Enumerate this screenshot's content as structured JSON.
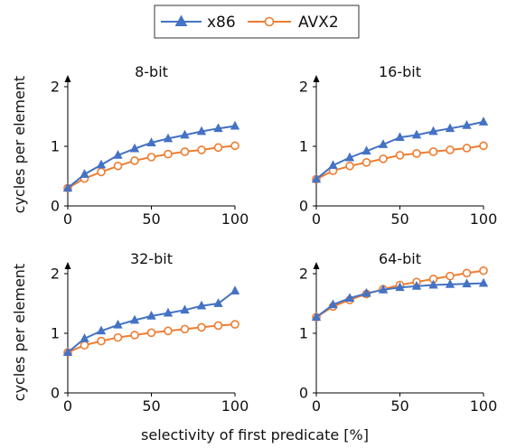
{
  "legend": [
    {
      "name": "x86",
      "color": "#4472C4",
      "marker": "triangle"
    },
    {
      "name": "AVX2",
      "color": "#ED7D31",
      "marker": "circle"
    }
  ],
  "ylabel": "cycles per element",
  "xlabel": "selectivity of first predicate [%]",
  "chart_data": [
    {
      "type": "line",
      "title": "8-bit",
      "x": [
        0,
        10,
        20,
        30,
        40,
        50,
        60,
        70,
        80,
        90,
        100
      ],
      "xlim": [
        0,
        100
      ],
      "ylim": [
        0,
        2
      ],
      "xticks": [
        "0",
        "50",
        "100"
      ],
      "yticks": [
        "0",
        "1",
        "2"
      ],
      "series": [
        {
          "name": "x86",
          "values": [
            0.3,
            0.53,
            0.69,
            0.85,
            0.96,
            1.06,
            1.13,
            1.19,
            1.25,
            1.3,
            1.34
          ]
        },
        {
          "name": "AVX2",
          "values": [
            0.3,
            0.46,
            0.57,
            0.67,
            0.76,
            0.82,
            0.87,
            0.91,
            0.94,
            0.98,
            1.01
          ]
        }
      ]
    },
    {
      "type": "line",
      "title": "16-bit",
      "x": [
        0,
        10,
        20,
        30,
        40,
        50,
        60,
        70,
        80,
        90,
        100
      ],
      "xlim": [
        0,
        100
      ],
      "ylim": [
        0,
        2
      ],
      "xticks": [
        "0",
        "50",
        "100"
      ],
      "yticks": [
        "0",
        "1",
        "2"
      ],
      "series": [
        {
          "name": "x86",
          "values": [
            0.45,
            0.68,
            0.81,
            0.92,
            1.03,
            1.15,
            1.19,
            1.25,
            1.3,
            1.35,
            1.41
          ]
        },
        {
          "name": "AVX2",
          "values": [
            0.45,
            0.59,
            0.67,
            0.73,
            0.79,
            0.85,
            0.88,
            0.91,
            0.94,
            0.97,
            1.01
          ]
        }
      ]
    },
    {
      "type": "line",
      "title": "32-bit",
      "x": [
        0,
        10,
        20,
        30,
        40,
        50,
        60,
        70,
        80,
        90,
        100
      ],
      "xlim": [
        0,
        100
      ],
      "ylim": [
        0,
        2
      ],
      "xticks": [
        "0",
        "50",
        "100"
      ],
      "yticks": [
        "0",
        "1",
        "2"
      ],
      "series": [
        {
          "name": "x86",
          "values": [
            0.68,
            0.91,
            1.04,
            1.14,
            1.22,
            1.29,
            1.34,
            1.39,
            1.46,
            1.5,
            1.71
          ]
        },
        {
          "name": "AVX2",
          "values": [
            0.68,
            0.8,
            0.87,
            0.93,
            0.97,
            1.01,
            1.04,
            1.07,
            1.1,
            1.13,
            1.15
          ]
        }
      ]
    },
    {
      "type": "line",
      "title": "64-bit",
      "x": [
        0,
        10,
        20,
        30,
        40,
        50,
        60,
        70,
        80,
        90,
        100
      ],
      "xlim": [
        0,
        100
      ],
      "ylim": [
        0,
        2
      ],
      "xticks": [
        "0",
        "50",
        "100"
      ],
      "yticks": [
        "0",
        "1",
        "2"
      ],
      "series": [
        {
          "name": "x86",
          "values": [
            1.27,
            1.48,
            1.59,
            1.67,
            1.73,
            1.77,
            1.79,
            1.81,
            1.82,
            1.83,
            1.84
          ]
        },
        {
          "name": "AVX2",
          "values": [
            1.27,
            1.45,
            1.56,
            1.66,
            1.74,
            1.81,
            1.86,
            1.91,
            1.96,
            2.01,
            2.05
          ]
        }
      ]
    }
  ]
}
